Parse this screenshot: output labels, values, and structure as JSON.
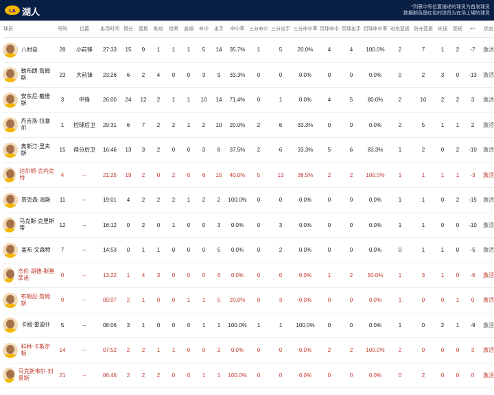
{
  "header": {
    "team": "湖人",
    "note_line1": "*列表中号位置描述的球员为首发球员",
    "note_line2": "数据颜色是红色的球员为在场上場的球员"
  },
  "columns": [
    "球员",
    "号码",
    "位置",
    "出场时间",
    "得分",
    "篮板",
    "助攻",
    "抢断",
    "盖帽",
    "命中",
    "出手",
    "命中率",
    "三分命中",
    "三分出手",
    "三分命中率",
    "罚球命中",
    "罚球出手",
    "罚球命中率",
    "进攻篮板",
    "防守篮板",
    "失误",
    "犯规",
    "+/-",
    "状态"
  ],
  "players": [
    {
      "name": "八村垒",
      "number": "28",
      "position": "小前锋",
      "min": "27:33",
      "pts": "15",
      "reb": "9",
      "ast": "1",
      "stl": "1",
      "blk": "1",
      "fgm": "5",
      "fga": "14",
      "fgp": "35.7%",
      "tpm": "1",
      "tpa": "5",
      "tpp": "20.0%",
      "ftm": "4",
      "fta": "4",
      "ftp": "100.0%",
      "oreb": "2",
      "dreb": "7",
      "tov": "1",
      "pf": "2",
      "pm": "-7",
      "status": "激活",
      "bench": false
    },
    {
      "name": "勒布朗·詹姆斯",
      "number": "23",
      "position": "大前锋",
      "min": "23:26",
      "pts": "6",
      "reb": "2",
      "ast": "4",
      "stl": "0",
      "blk": "0",
      "fgm": "3",
      "fga": "9",
      "fgp": "33.3%",
      "tpm": "0",
      "tpa": "0",
      "tpp": "0.0%",
      "ftm": "0",
      "fta": "0",
      "ftp": "0.0%",
      "oreb": "0",
      "dreb": "2",
      "tov": "3",
      "pf": "0",
      "pm": "-13",
      "status": "激活",
      "bench": false
    },
    {
      "name": "安东尼·戴维斯",
      "number": "3",
      "position": "中锋",
      "min": "26:00",
      "pts": "24",
      "reb": "12",
      "ast": "2",
      "stl": "1",
      "blk": "1",
      "fgm": "10",
      "fga": "14",
      "fgp": "71.4%",
      "tpm": "0",
      "tpa": "1",
      "tpp": "0.0%",
      "ftm": "4",
      "fta": "5",
      "ftp": "80.0%",
      "oreb": "2",
      "dreb": "10",
      "tov": "2",
      "pf": "2",
      "pm": "3",
      "status": "激活",
      "bench": false
    },
    {
      "name": "丹吉洛·拉塞尔",
      "number": "1",
      "position": "控球后卫",
      "min": "29:31",
      "pts": "6",
      "reb": "7",
      "ast": "2",
      "stl": "2",
      "blk": "1",
      "fgm": "2",
      "fga": "10",
      "fgp": "20.0%",
      "tpm": "2",
      "tpa": "6",
      "tpp": "33.3%",
      "ftm": "0",
      "fta": "0",
      "ftp": "0.0%",
      "oreb": "2",
      "dreb": "5",
      "tov": "1",
      "pf": "1",
      "pm": "2",
      "status": "激活",
      "bench": false
    },
    {
      "name": "奥斯汀·里夫斯",
      "number": "15",
      "position": "得分后卫",
      "min": "16:46",
      "pts": "13",
      "reb": "3",
      "ast": "2",
      "stl": "0",
      "blk": "0",
      "fgm": "3",
      "fga": "8",
      "fgp": "37.5%",
      "tpm": "2",
      "tpa": "6",
      "tpp": "33.3%",
      "ftm": "5",
      "fta": "6",
      "ftp": "83.3%",
      "oreb": "1",
      "dreb": "2",
      "tov": "0",
      "pf": "2",
      "pm": "-10",
      "status": "激活",
      "bench": false
    },
    {
      "name": "达尔顿·克内克特",
      "number": "4",
      "position": "--",
      "min": "21:25",
      "pts": "19",
      "reb": "2",
      "ast": "0",
      "stl": "2",
      "blk": "0",
      "fgm": "6",
      "fga": "15",
      "fgp": "40.0%",
      "tpm": "5",
      "tpa": "13",
      "tpp": "38.5%",
      "ftm": "2",
      "fta": "2",
      "ftp": "100.0%",
      "oreb": "1",
      "dreb": "1",
      "tov": "1",
      "pf": "1",
      "pm": "-3",
      "status": "激活",
      "bench": true
    },
    {
      "name": "贾克森·海斯",
      "number": "11",
      "position": "--",
      "min": "19:01",
      "pts": "4",
      "reb": "2",
      "ast": "2",
      "stl": "2",
      "blk": "1",
      "fgm": "2",
      "fga": "2",
      "fgp": "100.0%",
      "tpm": "0",
      "tpa": "0",
      "tpp": "0.0%",
      "ftm": "0",
      "fta": "0",
      "ftp": "0.0%",
      "oreb": "1",
      "dreb": "1",
      "tov": "0",
      "pf": "2",
      "pm": "-15",
      "status": "激活",
      "bench": false
    },
    {
      "name": "马克斯·克里斯蒂",
      "number": "12",
      "position": "--",
      "min": "16:12",
      "pts": "0",
      "reb": "2",
      "ast": "0",
      "stl": "1",
      "blk": "0",
      "fgm": "0",
      "fga": "3",
      "fgp": "0.0%",
      "tpm": "0",
      "tpa": "3",
      "tpp": "0.0%",
      "ftm": "0",
      "fta": "0",
      "ftp": "0.0%",
      "oreb": "1",
      "dreb": "1",
      "tov": "0",
      "pf": "0",
      "pm": "-10",
      "status": "激活",
      "bench": false
    },
    {
      "name": "盖布·文森特",
      "number": "7",
      "position": "--",
      "min": "14:53",
      "pts": "0",
      "reb": "1",
      "ast": "1",
      "stl": "0",
      "blk": "0",
      "fgm": "0",
      "fga": "5",
      "fgp": "0.0%",
      "tpm": "0",
      "tpa": "2",
      "tpp": "0.0%",
      "ftm": "0",
      "fta": "0",
      "ftp": "0.0%",
      "oreb": "0",
      "dreb": "1",
      "tov": "1",
      "pf": "0",
      "pm": "-5",
      "status": "激活",
      "bench": false
    },
    {
      "name": "杰伦·胡德-斯基菲诺",
      "number": "0",
      "position": "--",
      "min": "13:22",
      "pts": "1",
      "reb": "4",
      "ast": "3",
      "stl": "0",
      "blk": "0",
      "fgm": "0",
      "fga": "6",
      "fgp": "0.0%",
      "tpm": "0",
      "tpa": "0",
      "tpp": "0.0%",
      "ftm": "1",
      "fta": "2",
      "ftp": "50.0%",
      "oreb": "1",
      "dreb": "3",
      "tov": "1",
      "pf": "0",
      "pm": "-6",
      "status": "激活",
      "bench": true
    },
    {
      "name": "布朗尼·詹姆斯",
      "number": "9",
      "position": "--",
      "min": "09:07",
      "pts": "2",
      "reb": "1",
      "ast": "0",
      "stl": "0",
      "blk": "1",
      "fgm": "1",
      "fga": "5",
      "fgp": "20.0%",
      "tpm": "0",
      "tpa": "3",
      "tpp": "0.0%",
      "ftm": "0",
      "fta": "0",
      "ftp": "0.0%",
      "oreb": "1",
      "dreb": "0",
      "tov": "0",
      "pf": "1",
      "pm": "0",
      "status": "激活",
      "bench": true
    },
    {
      "name": "卡姆·雷迪什",
      "number": "5",
      "position": "--",
      "min": "08:06",
      "pts": "3",
      "reb": "1",
      "ast": "0",
      "stl": "0",
      "blk": "0",
      "fgm": "1",
      "fga": "1",
      "fgp": "100.0%",
      "tpm": "1",
      "tpa": "1",
      "tpp": "100.0%",
      "ftm": "0",
      "fta": "0",
      "ftp": "0.0%",
      "oreb": "1",
      "dreb": "0",
      "tov": "2",
      "pf": "1",
      "pm": "-9",
      "status": "激活",
      "bench": false
    },
    {
      "name": "科林·卡斯尔顿",
      "number": "14",
      "position": "--",
      "min": "07:52",
      "pts": "2",
      "reb": "2",
      "ast": "1",
      "stl": "1",
      "blk": "0",
      "fgm": "0",
      "fga": "2",
      "fgp": "0.0%",
      "tpm": "0",
      "tpa": "0",
      "tpp": "0.0%",
      "ftm": "2",
      "fta": "2",
      "ftp": "100.0%",
      "oreb": "2",
      "dreb": "0",
      "tov": "0",
      "pf": "0",
      "pm": "3",
      "status": "激活",
      "bench": true
    },
    {
      "name": "马克斯韦尔·刘易斯",
      "number": "21",
      "position": "--",
      "min": "06:46",
      "pts": "2",
      "reb": "2",
      "ast": "2",
      "stl": "0",
      "blk": "0",
      "fgm": "1",
      "fga": "1",
      "fgp": "100.0%",
      "tpm": "0",
      "tpa": "0",
      "tpp": "0.0%",
      "ftm": "0",
      "fta": "0",
      "ftp": "0.0%",
      "oreb": "0",
      "dreb": "2",
      "tov": "0",
      "pf": "0",
      "pm": "0",
      "status": "激活",
      "bench": true
    }
  ]
}
